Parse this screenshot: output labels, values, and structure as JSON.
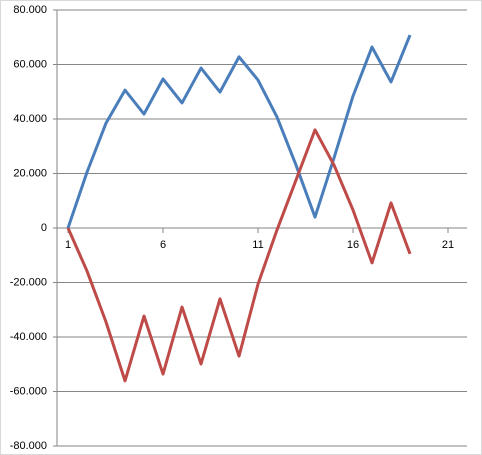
{
  "chart_data": {
    "type": "line",
    "x": [
      1,
      2,
      3,
      4,
      5,
      6,
      7,
      8,
      9,
      10,
      11,
      12,
      13,
      14,
      15,
      16,
      17,
      18,
      19
    ],
    "series": [
      {
        "color": "#4a7ebb",
        "values": [
          0,
          20.5,
          38.5,
          50.6,
          41.8,
          54.7,
          45.9,
          58.7,
          49.9,
          62.8,
          54.3,
          40.7,
          23.1,
          4,
          25.7,
          48.4,
          66.4,
          53.6,
          70.8
        ]
      },
      {
        "color": "#be4b48",
        "values": [
          0,
          -15.8,
          -34.5,
          -56.1,
          -32.3,
          -53.6,
          -29,
          -49.9,
          -26,
          -47,
          -20.6,
          -0.7,
          17.6,
          36,
          23.1,
          6.6,
          -12.8,
          9.2,
          -9.5
        ]
      }
    ],
    "xlim": [
      0.42,
      22
    ],
    "xticks": [
      1,
      6,
      11,
      16,
      21
    ],
    "ylim": [
      -80,
      80
    ],
    "yticks": [
      {
        "value": -80,
        "label": "-80.000"
      },
      {
        "value": -60,
        "label": "-60.000"
      },
      {
        "value": -40,
        "label": "-40.000"
      },
      {
        "value": -20,
        "label": "-20.000"
      },
      0,
      {
        "value": 20,
        "label": "20.000"
      },
      {
        "value": 40,
        "label": "40.000"
      },
      {
        "value": 60,
        "label": "60.000"
      },
      {
        "value": 80,
        "label": "80.000"
      }
    ],
    "grid": true
  }
}
